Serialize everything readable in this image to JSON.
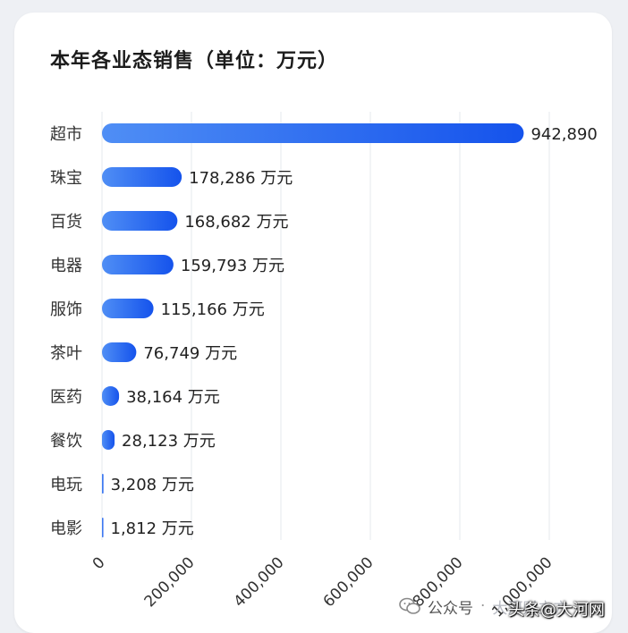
{
  "title": "本年各业态销售（单位：万元）",
  "chart_data": {
    "type": "bar",
    "orientation": "horizontal",
    "title": "本年各业态销售（单位：万元）",
    "categories": [
      "超市",
      "珠宝",
      "百货",
      "电器",
      "服饰",
      "茶叶",
      "医药",
      "餐饮",
      "电玩",
      "电影"
    ],
    "values": [
      942890,
      178286,
      168682,
      159793,
      115166,
      76749,
      38164,
      28123,
      3208,
      1812
    ],
    "data_labels": [
      "942,890",
      "178,286 万元",
      "168,682 万元",
      "159,793 万元",
      "115,166 万元",
      "76,749 万元",
      "38,164 万元",
      "28,123 万元",
      "3,208 万元",
      "1,812 万元"
    ],
    "x_ticks": [
      "0",
      "200,000",
      "400,000",
      "600,000",
      "800,000",
      "1,000,000"
    ],
    "x_tick_values": [
      0,
      200000,
      400000,
      600000,
      800000,
      1000000
    ],
    "xlim": [
      0,
      1000000
    ],
    "grid": "vertical",
    "bar_color_start": "#4f8ef5",
    "bar_color_end": "#1553ec"
  },
  "footer": {
    "icon": "wechat-icon",
    "wechat_label": "公众号",
    "separator": "·",
    "account_faded": "大河财立方",
    "credit": "头条@大河网"
  }
}
